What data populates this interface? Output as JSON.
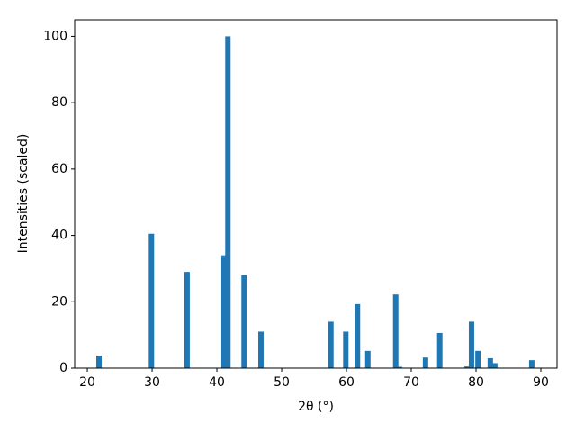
{
  "chart_data": {
    "type": "bar",
    "x_label": "2θ (°)",
    "y_label": "Intensities (scaled)",
    "x": [
      21.8,
      29.9,
      35.4,
      41.1,
      41.7,
      44.2,
      46.8,
      57.6,
      59.9,
      61.7,
      63.3,
      67.6,
      68.2,
      72.2,
      74.4,
      78.6,
      79.3,
      80.3,
      82.2,
      82.9,
      88.6
    ],
    "values": [
      3.8,
      40.5,
      29,
      34,
      100,
      28,
      11,
      14,
      11,
      19.3,
      5.2,
      22.2,
      0.4,
      3.2,
      10.6,
      0.5,
      14,
      5.2,
      3,
      1.5,
      2.4
    ],
    "color": "#1f77b4",
    "xlim": [
      18.05,
      92.5
    ],
    "xticks": [
      20,
      30,
      40,
      50,
      60,
      70,
      80,
      90
    ],
    "ylim": [
      0,
      105
    ],
    "yticks": [
      0,
      20,
      40,
      60,
      80,
      100
    ],
    "grid": false
  }
}
